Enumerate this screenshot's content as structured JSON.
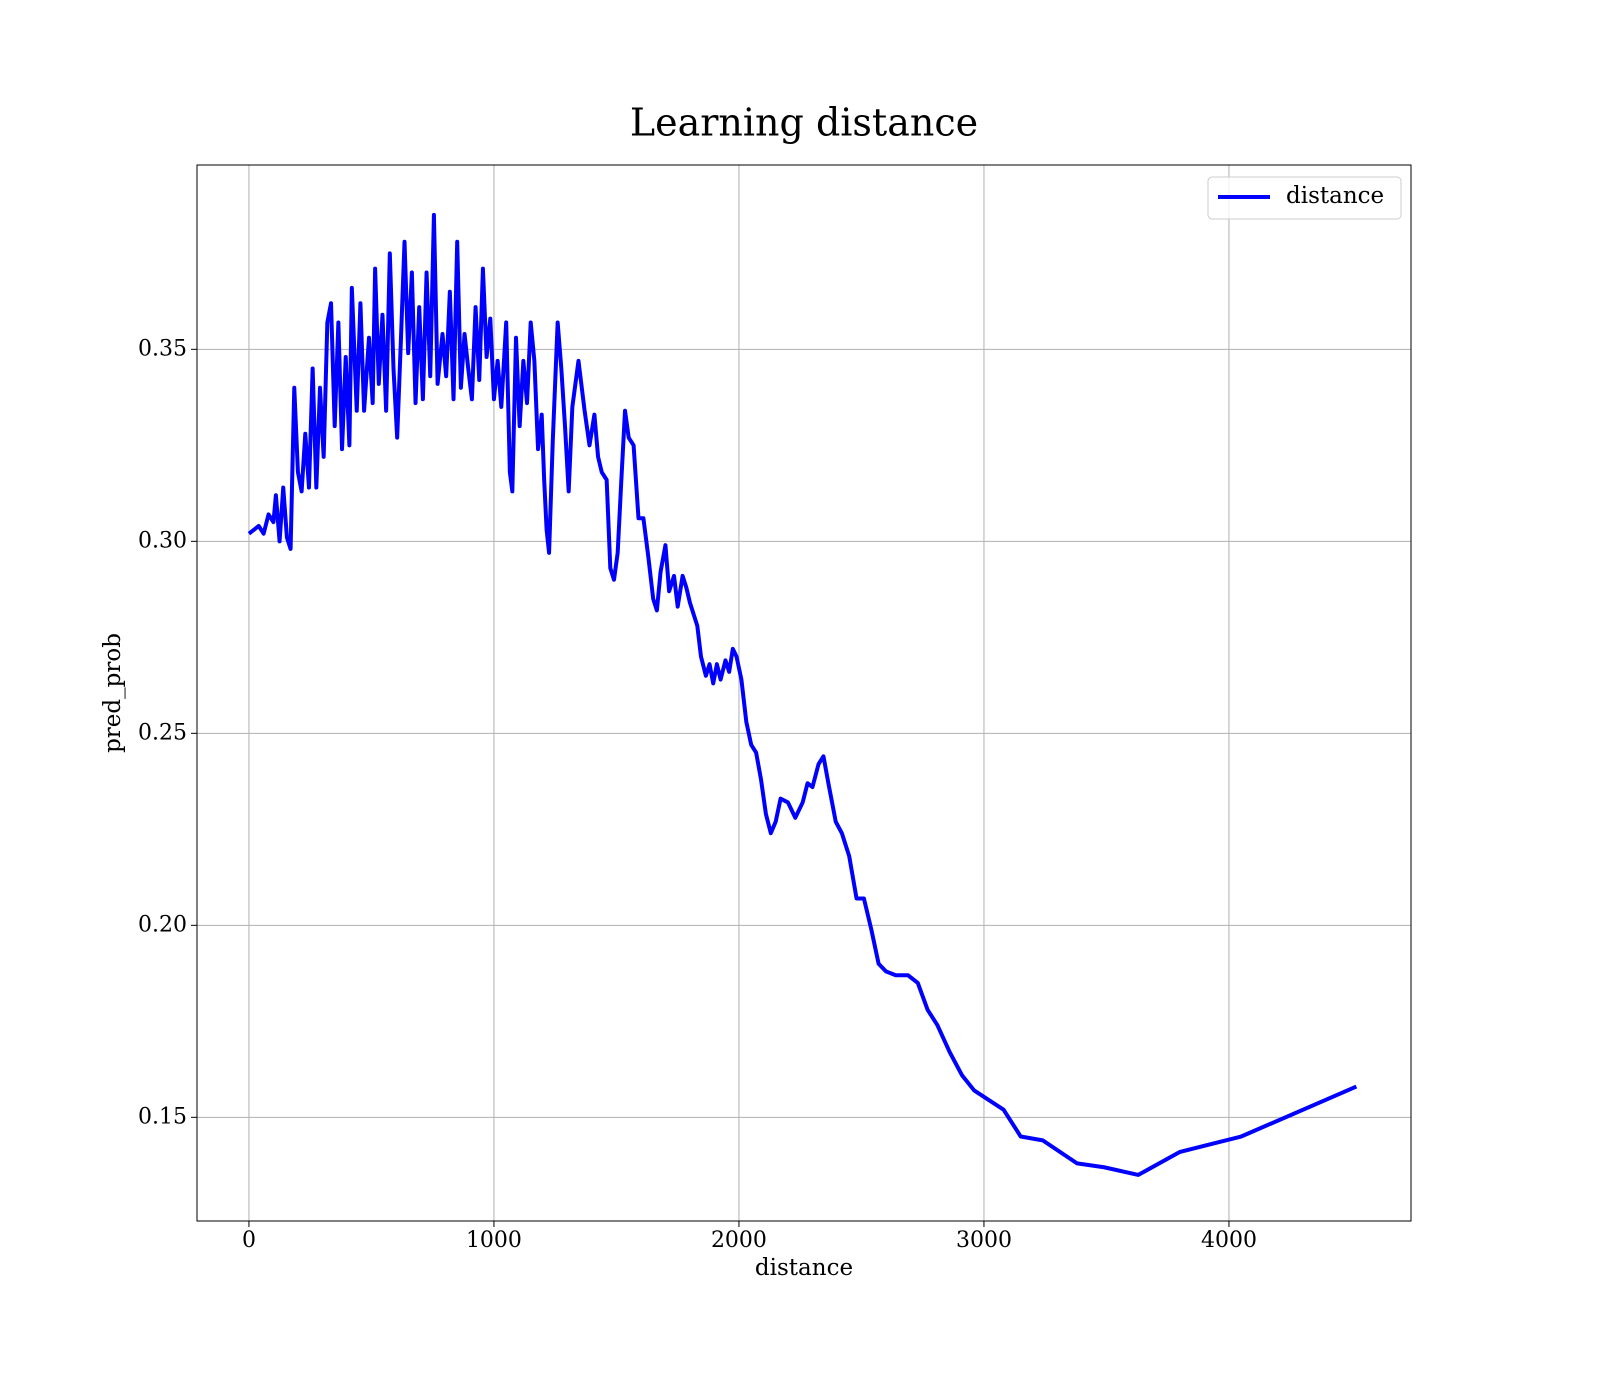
{
  "chart_data": {
    "type": "line",
    "title": "Learning distance",
    "xlabel": "distance",
    "ylabel": "pred_prob",
    "x": [
      0,
      40,
      60,
      80,
      100,
      110,
      125,
      140,
      155,
      170,
      185,
      200,
      215,
      230,
      245,
      260,
      275,
      290,
      305,
      320,
      335,
      350,
      365,
      380,
      395,
      410,
      420,
      440,
      455,
      470,
      490,
      505,
      515,
      530,
      545,
      560,
      575,
      590,
      605,
      620,
      635,
      650,
      665,
      680,
      695,
      710,
      725,
      740,
      755,
      770,
      790,
      805,
      820,
      835,
      850,
      865,
      880,
      895,
      910,
      925,
      940,
      955,
      970,
      985,
      1000,
      1015,
      1030,
      1050,
      1065,
      1075,
      1090,
      1105,
      1120,
      1135,
      1150,
      1165,
      1180,
      1195,
      1205,
      1215,
      1225,
      1240,
      1260,
      1275,
      1290,
      1305,
      1320,
      1345,
      1370,
      1390,
      1410,
      1425,
      1440,
      1460,
      1475,
      1490,
      1505,
      1520,
      1535,
      1550,
      1570,
      1590,
      1610,
      1630,
      1650,
      1665,
      1680,
      1700,
      1715,
      1735,
      1750,
      1770,
      1785,
      1800,
      1830,
      1845,
      1865,
      1880,
      1895,
      1910,
      1925,
      1945,
      1960,
      1975,
      1990,
      2010,
      2030,
      2050,
      2070,
      2090,
      2110,
      2130,
      2150,
      2170,
      2200,
      2230,
      2260,
      2280,
      2300,
      2325,
      2345,
      2365,
      2395,
      2420,
      2450,
      2480,
      2510,
      2540,
      2570,
      2600,
      2640,
      2690,
      2730,
      2770,
      2810,
      2860,
      2910,
      2960,
      3080,
      3150,
      3240,
      3380,
      3490,
      3630,
      3800,
      4050,
      4520
    ],
    "series": [
      {
        "name": "distance",
        "color": "#0000ff",
        "values": [
          0.302,
          0.304,
          0.302,
          0.307,
          0.305,
          0.312,
          0.3,
          0.314,
          0.301,
          0.298,
          0.34,
          0.318,
          0.313,
          0.328,
          0.314,
          0.345,
          0.314,
          0.34,
          0.322,
          0.357,
          0.362,
          0.33,
          0.357,
          0.324,
          0.348,
          0.325,
          0.366,
          0.334,
          0.362,
          0.334,
          0.353,
          0.336,
          0.371,
          0.341,
          0.359,
          0.334,
          0.375,
          0.345,
          0.327,
          0.352,
          0.378,
          0.349,
          0.37,
          0.336,
          0.361,
          0.337,
          0.37,
          0.343,
          0.385,
          0.341,
          0.354,
          0.343,
          0.365,
          0.337,
          0.378,
          0.34,
          0.354,
          0.345,
          0.337,
          0.361,
          0.342,
          0.371,
          0.348,
          0.358,
          0.337,
          0.347,
          0.335,
          0.357,
          0.318,
          0.313,
          0.353,
          0.33,
          0.347,
          0.336,
          0.357,
          0.347,
          0.324,
          0.333,
          0.316,
          0.303,
          0.297,
          0.326,
          0.357,
          0.345,
          0.33,
          0.313,
          0.335,
          0.347,
          0.334,
          0.325,
          0.333,
          0.322,
          0.318,
          0.316,
          0.293,
          0.29,
          0.297,
          0.316,
          0.334,
          0.327,
          0.325,
          0.306,
          0.306,
          0.296,
          0.285,
          0.282,
          0.292,
          0.299,
          0.287,
          0.291,
          0.283,
          0.291,
          0.288,
          0.284,
          0.278,
          0.27,
          0.265,
          0.268,
          0.263,
          0.268,
          0.264,
          0.269,
          0.266,
          0.272,
          0.27,
          0.264,
          0.253,
          0.247,
          0.245,
          0.238,
          0.229,
          0.224,
          0.227,
          0.233,
          0.232,
          0.228,
          0.232,
          0.237,
          0.236,
          0.242,
          0.244,
          0.237,
          0.227,
          0.224,
          0.218,
          0.207,
          0.207,
          0.199,
          0.19,
          0.188,
          0.187,
          0.187,
          0.185,
          0.178,
          0.174,
          0.167,
          0.161,
          0.157,
          0.152,
          0.145,
          0.144,
          0.138,
          0.137,
          0.135,
          0.141,
          0.145,
          0.158
        ]
      }
    ],
    "xlim": [
      -212,
      4743
    ],
    "ylim": [
      0.123,
      0.398
    ],
    "xticks": [
      0,
      1000,
      2000,
      3000,
      4000
    ],
    "yticks": [
      0.15,
      {
        "value": 0.2,
        "label": "0.20"
      },
      0.25,
      {
        "value": 0.3,
        "label": "0.30"
      },
      0.35
    ],
    "grid": true,
    "legend": "upper right"
  }
}
